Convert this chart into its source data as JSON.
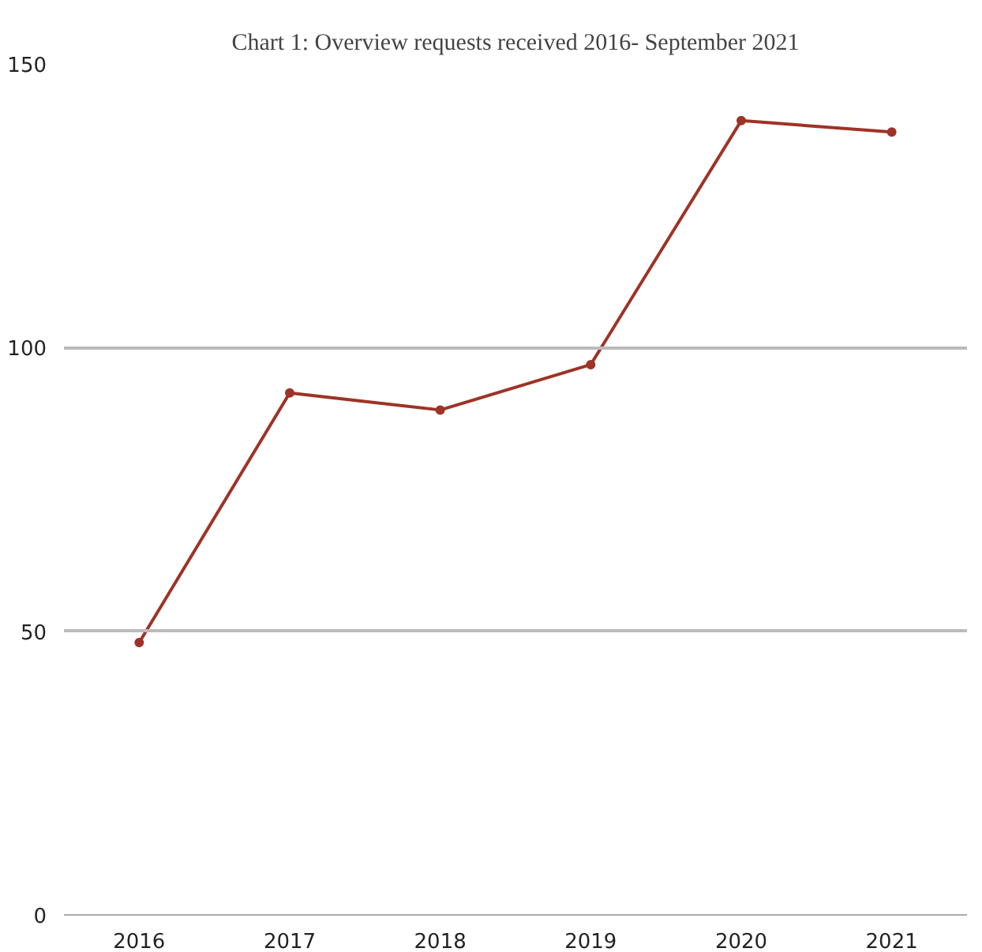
{
  "chart_data": {
    "type": "line",
    "title": "Chart 1: Overview requests received 2016- September 2021",
    "categories": [
      "2016",
      "2017",
      "2018",
      "2019",
      "2020",
      "2021"
    ],
    "series": [
      {
        "color": "#9e3327",
        "values": [
          48,
          92,
          89,
          97,
          140,
          138
        ]
      }
    ],
    "ylim": [
      0,
      150
    ],
    "yticks": [
      0,
      50,
      100,
      150
    ],
    "grid": "y",
    "marker": "circle"
  }
}
